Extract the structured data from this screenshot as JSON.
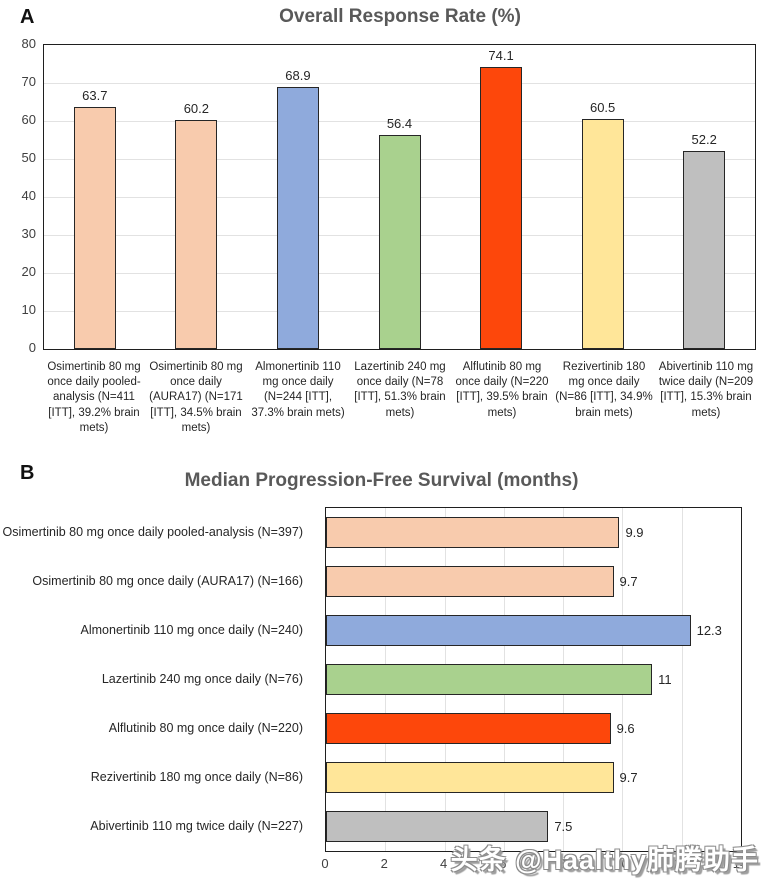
{
  "panels": {
    "a": "A",
    "b": "B"
  },
  "watermark": {
    "text": "头条 @Haalthy肺腾助手"
  },
  "colors": {
    "peach": "#F8CBAD",
    "blue": "#8FAADC",
    "green": "#A9D18E",
    "orange_red": "#FD470B",
    "yellow": "#FFE699",
    "gray": "#BFBFBF",
    "bar_border": "#262626",
    "plot_border": "#1f1f1f",
    "gridline": "#e2e2e2",
    "title_text": "#595959"
  },
  "chart_data": [
    {
      "type": "bar",
      "orientation": "vertical",
      "title": "Overall Response Rate (%)",
      "categories": [
        "Osimertinib 80 mg once daily pooled-analysis (N=411 [ITT], 39.2% brain mets)",
        "Osimertinib 80 mg once daily (AURA17) (N=171 [ITT], 34.5% brain mets)",
        "Almonertinib 110 mg once daily (N=244 [ITT], 37.3% brain mets)",
        "Lazertinib 240 mg once daily (N=78 [ITT], 51.3% brain mets)",
        "Alflutinib 80 mg once daily (N=220 [ITT], 39.5% brain mets)",
        "Rezivertinib 180 mg once daily (N=86 [ITT], 34.9% brain mets)",
        "Abivertinib 110 mg twice daily (N=209 [ITT], 15.3% brain mets)"
      ],
      "values": [
        63.7,
        60.2,
        68.9,
        56.4,
        74.1,
        60.5,
        52.2
      ],
      "value_labels": [
        "63.7",
        "60.2",
        "68.9",
        "56.4",
        "74.1",
        "60.5",
        "52.2"
      ],
      "bar_colors": [
        "#F8CBAD",
        "#F8CBAD",
        "#8FAADC",
        "#A9D18E",
        "#FD470B",
        "#FFE699",
        "#BFBFBF"
      ],
      "ylim": [
        0,
        80
      ],
      "yticks": [
        0,
        10,
        20,
        30,
        40,
        50,
        60,
        70,
        80
      ],
      "grid": true,
      "legend": false
    },
    {
      "type": "bar",
      "orientation": "horizontal",
      "title": "Median Progression-Free Survival (months)",
      "categories": [
        "Osimertinib 80 mg once daily pooled-analysis (N=397)",
        "Osimertinib 80 mg once daily (AURA17) (N=166)",
        "Almonertinib 110 mg once daily  (N=240)",
        "Lazertinib 240 mg once daily (N=76)",
        "Alflutinib 80 mg once daily (N=220)",
        "Rezivertinib 180 mg once daily (N=86)",
        "Abivertinib 110 mg twice daily (N=227)"
      ],
      "values": [
        9.9,
        9.7,
        12.3,
        11,
        9.6,
        9.7,
        7.5
      ],
      "value_labels": [
        "9.9",
        "9.7",
        "12.3",
        "11",
        "9.6",
        "9.7",
        "7.5"
      ],
      "bar_colors": [
        "#F8CBAD",
        "#F8CBAD",
        "#8FAADC",
        "#A9D18E",
        "#FD470B",
        "#FFE699",
        "#BFBFBF"
      ],
      "xlim": [
        0,
        14
      ],
      "xticks": [
        0,
        2,
        4,
        6,
        8,
        10,
        12,
        14
      ],
      "grid": true,
      "legend": false
    }
  ]
}
